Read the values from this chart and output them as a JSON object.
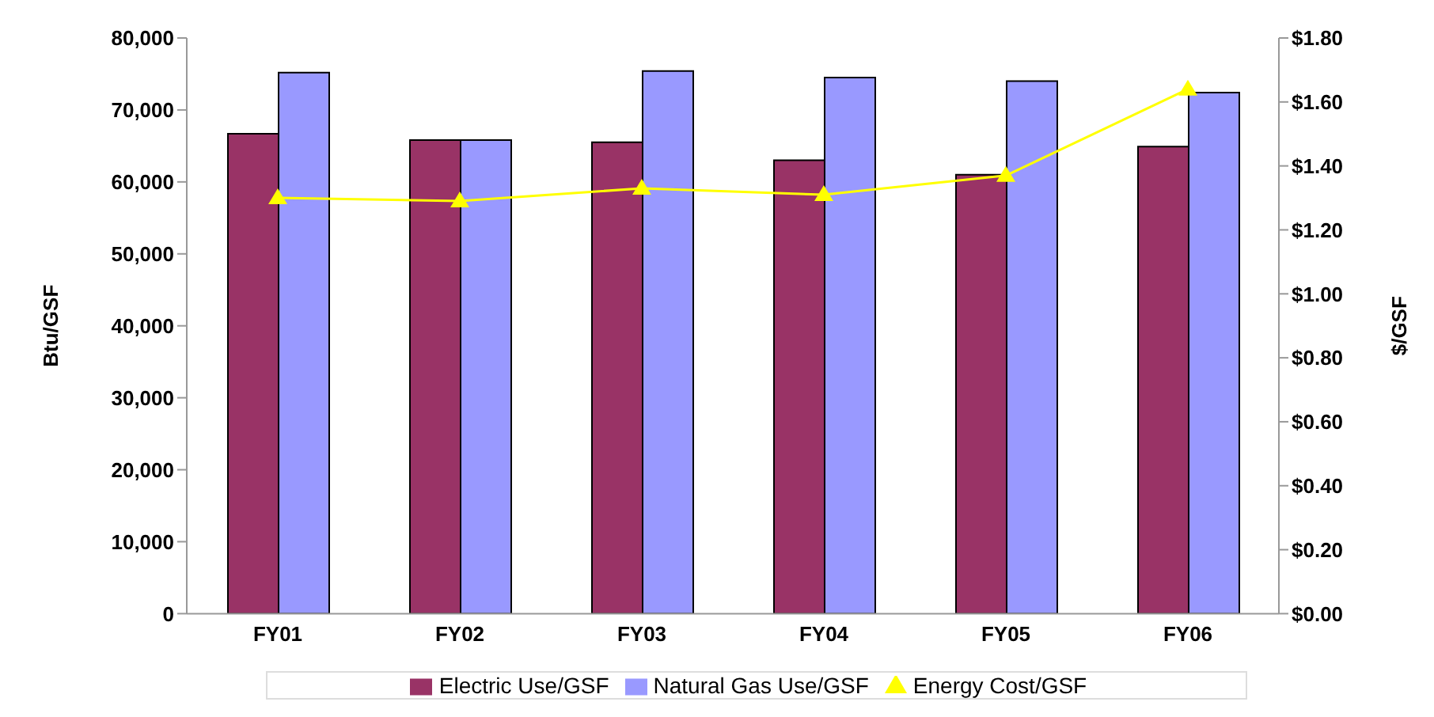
{
  "chart_data": {
    "type": "bar",
    "categories": [
      "FY01",
      "FY02",
      "FY03",
      "FY04",
      "FY05",
      "FY06"
    ],
    "ylabel": "Btu/GSF",
    "y2label": "$/GSF",
    "ylim": [
      0,
      80000
    ],
    "yticks": [
      {
        "value": 0,
        "label": "0"
      },
      {
        "value": 10000,
        "label": "10,000"
      },
      {
        "value": 20000,
        "label": "20,000"
      },
      {
        "value": 30000,
        "label": "30,000"
      },
      {
        "value": 40000,
        "label": "40,000"
      },
      {
        "value": 50000,
        "label": "50,000"
      },
      {
        "value": 60000,
        "label": "60,000"
      },
      {
        "value": 70000,
        "label": "70,000"
      },
      {
        "value": 80000,
        "label": "80,000"
      }
    ],
    "y2lim": [
      0,
      1.8
    ],
    "y2ticks": [
      {
        "value": 0,
        "label": "$0.00"
      },
      {
        "value": 0.2,
        "label": "$0.20"
      },
      {
        "value": 0.4,
        "label": "$0.40"
      },
      {
        "value": 0.6,
        "label": "$0.60"
      },
      {
        "value": 0.8,
        "label": "$0.80"
      },
      {
        "value": 1.0,
        "label": "$1.00"
      },
      {
        "value": 1.2,
        "label": "$1.20"
      },
      {
        "value": 1.4,
        "label": "$1.40"
      },
      {
        "value": 1.6,
        "label": "$1.60"
      },
      {
        "value": 1.8,
        "label": "$1.80"
      }
    ],
    "series": [
      {
        "name": "Electric Use/GSF",
        "color": "#993366",
        "values": [
          66700,
          65800,
          65500,
          63000,
          61000,
          64900
        ]
      },
      {
        "name": "Natural Gas Use/GSF",
        "color": "#9999ff",
        "values": [
          75200,
          65800,
          75400,
          74500,
          74000,
          72400
        ]
      },
      {
        "name": "Energy Cost/GSF",
        "type": "line",
        "axis": "y2",
        "color": "#ffff00",
        "marker": "triangle",
        "values": [
          1.3,
          1.29,
          1.33,
          1.31,
          1.37,
          1.64
        ]
      }
    ],
    "grid": false,
    "legend": "bottom"
  }
}
